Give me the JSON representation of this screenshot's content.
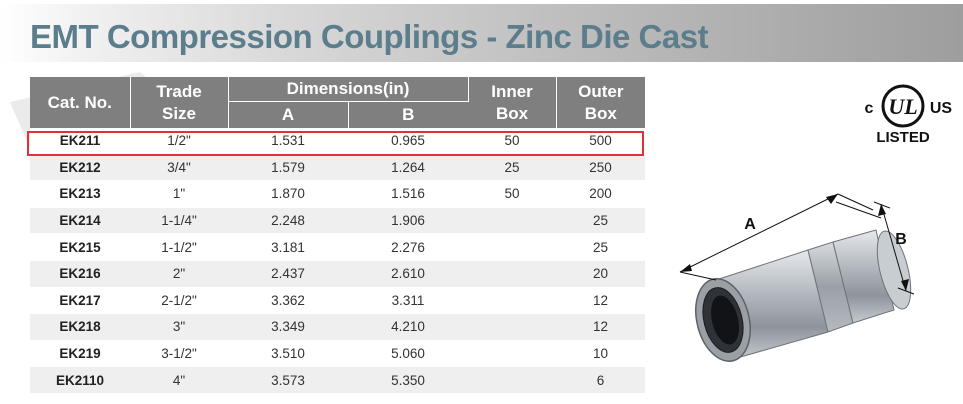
{
  "title": "EMT Compression Couplings - Zinc Die Cast",
  "table": {
    "headers": {
      "cat_no": "Cat. No.",
      "trade_size_line1": "Trade",
      "trade_size_line2": "Size",
      "dimensions": "Dimensions(in)",
      "dim_a": "A",
      "dim_b": "B",
      "inner_box_line1": "Inner",
      "inner_box_line2": "Box",
      "outer_box_line1": "Outer",
      "outer_box_line2": "Box"
    },
    "rows": [
      {
        "cat": "EK211",
        "size": "1/2\"",
        "a": "1.531",
        "b": "0.965",
        "inner": "50",
        "outer": "500"
      },
      {
        "cat": "EK212",
        "size": "3/4\"",
        "a": "1.579",
        "b": "1.264",
        "inner": "25",
        "outer": "250"
      },
      {
        "cat": "EK213",
        "size": "1\"",
        "a": "1.870",
        "b": "1.516",
        "inner": "50",
        "outer": "200"
      },
      {
        "cat": "EK214",
        "size": "1-1/4\"",
        "a": "2.248",
        "b": "1.906",
        "inner": "",
        "outer": "25"
      },
      {
        "cat": "EK215",
        "size": "1-1/2\"",
        "a": "3.181",
        "b": "2.276",
        "inner": "",
        "outer": "25"
      },
      {
        "cat": "EK216",
        "size": "2\"",
        "a": "2.437",
        "b": "2.610",
        "inner": "",
        "outer": "20"
      },
      {
        "cat": "EK217",
        "size": "2-1/2\"",
        "a": "3.362",
        "b": "3.311",
        "inner": "",
        "outer": "12"
      },
      {
        "cat": "EK218",
        "size": "3\"",
        "a": "3.349",
        "b": "4.210",
        "inner": "",
        "outer": "12"
      },
      {
        "cat": "EK219",
        "size": "3-1/2\"",
        "a": "3.510",
        "b": "5.060",
        "inner": "",
        "outer": "10"
      },
      {
        "cat": "EK2110",
        "size": "4\"",
        "a": "3.573",
        "b": "5.350",
        "inner": "",
        "outer": "6"
      }
    ],
    "highlighted_row": "EK211"
  },
  "ul_listing": {
    "c": "c",
    "ul": "UL",
    "us": "US",
    "listed": "LISTED"
  },
  "diagram": {
    "label_a": "A",
    "label_b": "B"
  },
  "colors": {
    "title": "#5b7d8c",
    "header_bg": "#7f7f7f",
    "highlight": "#e0303a"
  }
}
